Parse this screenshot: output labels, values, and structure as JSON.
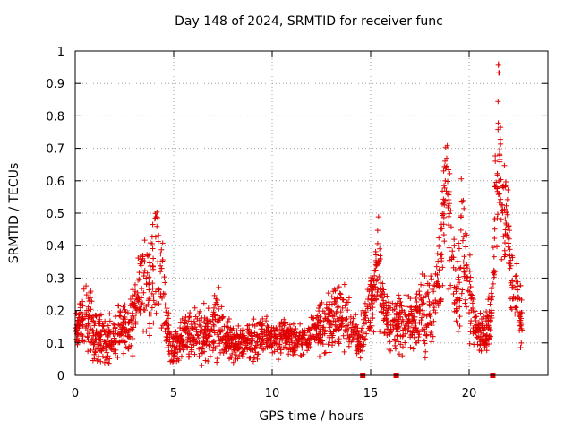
{
  "chart_data": {
    "type": "scatter",
    "title": "Day 148 of 2024, SRMTID for receiver func",
    "xlabel": "GPS time / hours",
    "ylabel": "SRMTID / TECUs",
    "xlim": [
      0,
      24
    ],
    "ylim": [
      0,
      1
    ],
    "xticks": [
      0,
      5,
      10,
      15,
      20
    ],
    "yticks": [
      0,
      0.1,
      0.2,
      0.3,
      0.4,
      0.5,
      0.6,
      0.7,
      0.8,
      0.9,
      1
    ],
    "grid": true,
    "marker": "+",
    "series_color": "#e00000",
    "gap_markers_x": [
      14.6,
      16.3,
      21.2
    ],
    "envelope": {
      "x": [
        0.0,
        0.4,
        0.8,
        1.2,
        1.6,
        2.0,
        2.4,
        2.8,
        3.1,
        3.4,
        3.7,
        4.0,
        4.2,
        4.4,
        4.6,
        4.9,
        5.2,
        5.6,
        6.0,
        6.5,
        7.0,
        7.2,
        7.6,
        8.0,
        8.5,
        9.0,
        9.5,
        10.0,
        10.5,
        11.0,
        11.5,
        12.0,
        12.5,
        13.0,
        13.5,
        13.9,
        14.2,
        14.4,
        14.6,
        14.8,
        15.1,
        15.4,
        15.7,
        16.0,
        16.3,
        16.6,
        17.0,
        17.4,
        17.8,
        18.2,
        18.6,
        18.8,
        19.0,
        19.2,
        19.4,
        19.7,
        20.0,
        20.4,
        20.8,
        21.1,
        21.3,
        21.5,
        21.7,
        21.9,
        22.1,
        22.3,
        22.5,
        22.7
      ],
      "center": [
        0.14,
        0.17,
        0.14,
        0.12,
        0.11,
        0.12,
        0.14,
        0.13,
        0.22,
        0.28,
        0.26,
        0.32,
        0.38,
        0.3,
        0.16,
        0.08,
        0.1,
        0.12,
        0.13,
        0.12,
        0.14,
        0.16,
        0.11,
        0.1,
        0.1,
        0.11,
        0.12,
        0.12,
        0.12,
        0.11,
        0.11,
        0.13,
        0.15,
        0.17,
        0.19,
        0.17,
        0.12,
        0.11,
        0.13,
        0.18,
        0.22,
        0.35,
        0.2,
        0.15,
        0.16,
        0.18,
        0.16,
        0.17,
        0.2,
        0.22,
        0.38,
        0.65,
        0.45,
        0.3,
        0.26,
        0.4,
        0.24,
        0.14,
        0.12,
        0.16,
        0.45,
        0.75,
        0.55,
        0.48,
        0.32,
        0.26,
        0.22,
        0.15
      ],
      "spread": [
        0.05,
        0.07,
        0.1,
        0.07,
        0.06,
        0.06,
        0.07,
        0.08,
        0.1,
        0.12,
        0.12,
        0.13,
        0.18,
        0.15,
        0.07,
        0.04,
        0.04,
        0.05,
        0.06,
        0.06,
        0.07,
        0.09,
        0.05,
        0.04,
        0.05,
        0.05,
        0.05,
        0.05,
        0.05,
        0.04,
        0.04,
        0.05,
        0.06,
        0.07,
        0.08,
        0.07,
        0.05,
        0.04,
        0.05,
        0.07,
        0.08,
        0.12,
        0.08,
        0.06,
        0.06,
        0.07,
        0.06,
        0.08,
        0.1,
        0.1,
        0.15,
        0.18,
        0.2,
        0.12,
        0.1,
        0.18,
        0.1,
        0.05,
        0.05,
        0.07,
        0.2,
        0.2,
        0.2,
        0.15,
        0.1,
        0.08,
        0.07,
        0.06
      ]
    }
  }
}
